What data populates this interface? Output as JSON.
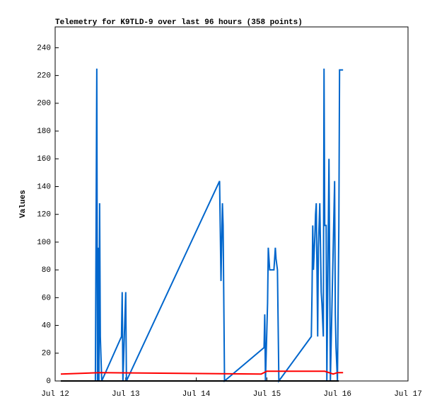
{
  "chart_data": {
    "type": "line",
    "title": "Telemetry for K9TLD-9 over last 96 hours (358 points)",
    "y_label": "Values",
    "xlim": [
      0,
      5
    ],
    "xticks": [
      {
        "value": 0,
        "label": "Jul 12"
      },
      {
        "value": 1,
        "label": "Jul 13"
      },
      {
        "value": 2,
        "label": "Jul 14"
      },
      {
        "value": 3,
        "label": "Jul 15"
      },
      {
        "value": 4,
        "label": "Jul 16"
      },
      {
        "value": 5,
        "label": "Jul 17"
      }
    ],
    "ylim": [
      0,
      255
    ],
    "yticks": [
      0,
      20,
      40,
      60,
      80,
      100,
      120,
      140,
      160,
      180,
      200,
      220,
      240
    ],
    "grid": false,
    "series": [
      {
        "color": "#0066cc",
        "x": [
          0.57,
          0.58,
          0.59,
          0.6,
          0.61,
          0.62,
          0.63,
          0.64,
          0.66,
          0.94,
          0.95,
          0.96,
          1.0,
          1.01,
          2.33,
          2.35,
          2.37,
          2.38,
          2.4,
          2.96,
          2.97,
          2.98,
          3.01,
          3.02,
          3.03,
          3.04,
          3.1,
          3.12,
          3.13,
          3.15,
          3.17,
          3.63,
          3.64,
          3.65,
          3.66,
          3.68,
          3.69,
          3.7,
          3.72,
          3.73,
          3.75,
          3.77,
          3.78,
          3.8,
          3.81,
          3.82,
          3.84,
          3.85,
          3.88,
          3.9,
          3.96,
          3.97,
          3.98,
          4.0,
          4.02,
          4.03,
          4.08
        ],
        "values": [
          0,
          112,
          225,
          0,
          96,
          0,
          128,
          32,
          0,
          32,
          64,
          0,
          64,
          0,
          144,
          72,
          128,
          112,
          0,
          24,
          48,
          0,
          56,
          96,
          88,
          80,
          80,
          96,
          88,
          80,
          0,
          32,
          64,
          112,
          80,
          104,
          120,
          128,
          32,
          96,
          128,
          64,
          56,
          32,
          225,
          112,
          112,
          0,
          160,
          0,
          144,
          48,
          24,
          0,
          112,
          224,
          224
        ]
      },
      {
        "color": "#ff0000",
        "x": [
          0.08,
          0.64,
          2.92,
          3.0,
          3.82,
          3.94,
          4.0,
          4.08
        ],
        "values": [
          5,
          6,
          5,
          7,
          7,
          5,
          6,
          6
        ]
      },
      {
        "color": "#000000",
        "x": [
          0.08,
          4.02
        ],
        "values": [
          0,
          0
        ]
      }
    ]
  }
}
